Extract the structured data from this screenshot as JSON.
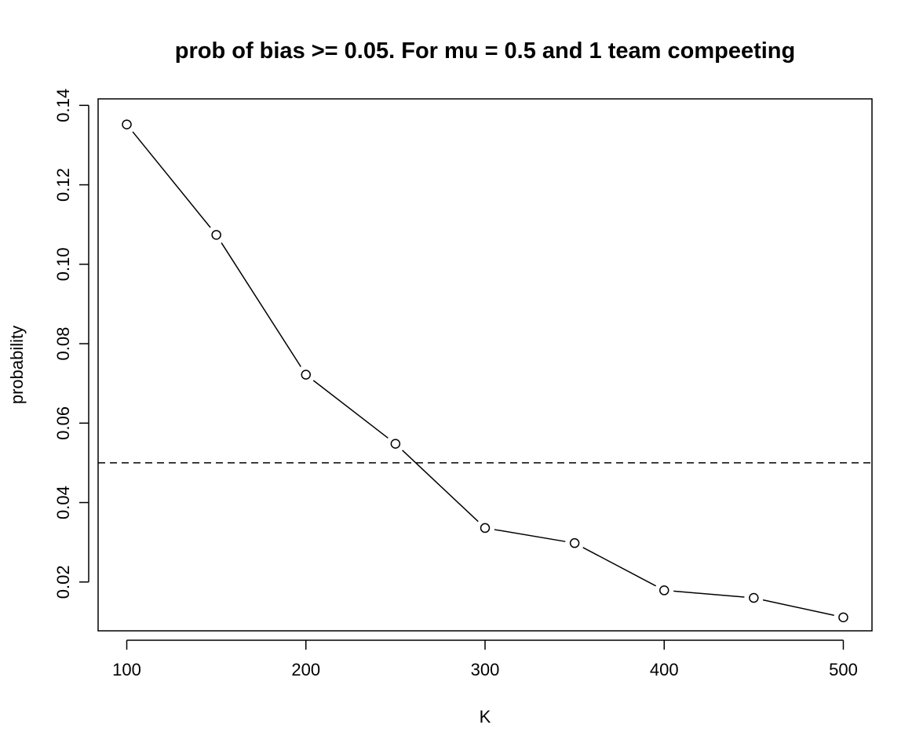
{
  "chart_data": {
    "type": "line",
    "title": "prob of bias >= 0.05. For mu = 0.5 and 1 team compeeting",
    "xlabel": "K",
    "ylabel": "probability",
    "x": [
      100,
      150,
      200,
      250,
      300,
      350,
      400,
      450,
      500
    ],
    "series": [
      {
        "values": [
          0.1352,
          0.1074,
          0.0722,
          0.0548,
          0.0336,
          0.0298,
          0.0179,
          0.016,
          0.0111
        ]
      }
    ],
    "reference_line": {
      "y": 0.05,
      "style": "dashed"
    },
    "x_ticks": [
      100,
      200,
      300,
      400,
      500
    ],
    "y_ticks": [
      0.02,
      0.04,
      0.06,
      0.08,
      0.1,
      0.12,
      0.14
    ],
    "x_tick_labels": [
      "100",
      "200",
      "300",
      "400",
      "500"
    ],
    "y_tick_labels": [
      "0.02",
      "0.04",
      "0.06",
      "0.08",
      "0.10",
      "0.12",
      "0.14"
    ],
    "xlim": [
      84,
      516
    ],
    "ylim": [
      0.00771,
      0.14164
    ],
    "grid": false,
    "legend": "none",
    "marker": "open-circle",
    "line_color": "#000000"
  }
}
